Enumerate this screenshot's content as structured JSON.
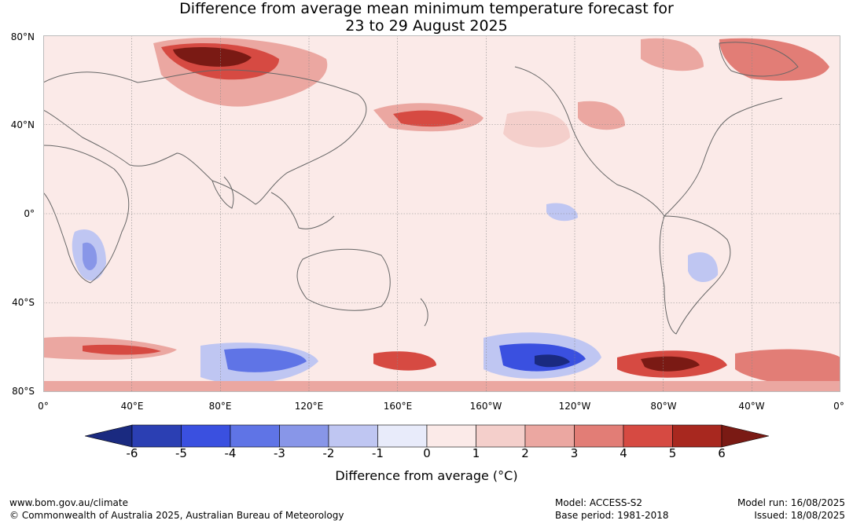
{
  "title": {
    "line1": "Difference from average mean minimum temperature forecast for",
    "line2": "23 to 29 August 2025"
  },
  "map": {
    "lat_labels": [
      "80°N",
      "40°N",
      "0°",
      "40°S",
      "80°S"
    ],
    "lon_labels": [
      "0°",
      "40°E",
      "80°E",
      "120°E",
      "160°E",
      "160°W",
      "120°W",
      "80°W",
      "40°W",
      "0°"
    ]
  },
  "colorbar": {
    "ticks": [
      "-6",
      "-5",
      "-4",
      "-3",
      "-2",
      "-1",
      "0",
      "1",
      "2",
      "3",
      "4",
      "5",
      "6"
    ],
    "colors": [
      "#1a2a80",
      "#2b3fb3",
      "#3a50e0",
      "#5f74e6",
      "#8896e8",
      "#bfc6f2",
      "#e8ebfa",
      "#fbeae8",
      "#f4cfcb",
      "#eba7a1",
      "#e27d76",
      "#d64a42",
      "#a8281f",
      "#7a1a14"
    ],
    "label": "Difference from average (°C)"
  },
  "footer": {
    "website": "www.bom.gov.au/climate",
    "copyright": "© Commonwealth of Australia 2025, Australian Bureau of Meteorology",
    "model": "Model: ACCESS-S2",
    "base_period": "Base period: 1981-2018",
    "model_run": "Model run: 16/08/2025",
    "issued": "Issued: 18/08/2025"
  }
}
